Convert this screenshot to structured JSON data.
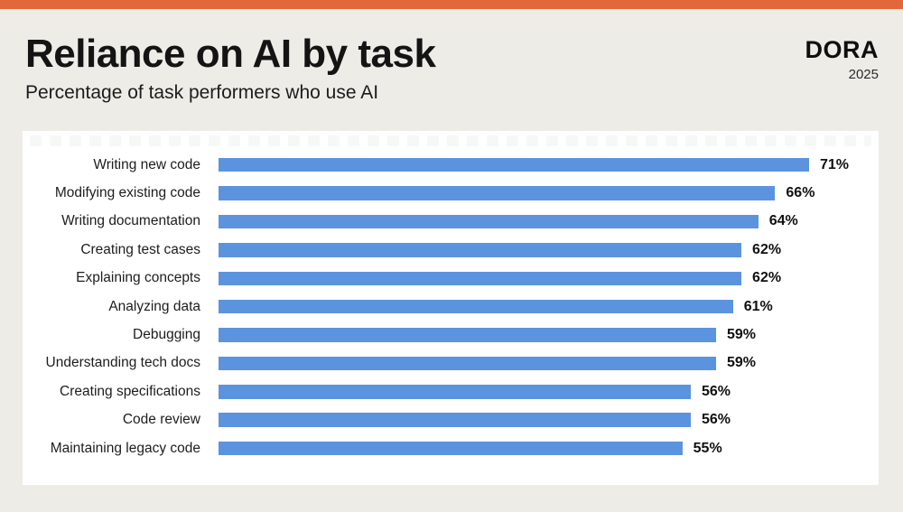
{
  "header": {
    "title": "Reliance on AI by task",
    "subtitle": "Percentage of task performers who use AI",
    "brand": "DORA",
    "year": "2025"
  },
  "colors": {
    "accent_orange": "#E2673A",
    "bar_blue": "#5C93DF",
    "background": "#EDECE7",
    "card": "#FFFFFF",
    "text_primary": "#1A1A1A"
  },
  "chart_data": {
    "type": "bar",
    "orientation": "horizontal",
    "title": "Reliance on AI by task",
    "subtitle": "Percentage of task performers who use AI",
    "categories": [
      "Writing new code",
      "Modifying existing code",
      "Writing documentation",
      "Creating test cases",
      "Explaining concepts",
      "Analyzing data",
      "Debugging",
      "Understanding tech docs",
      "Creating specifications",
      "Code review",
      "Maintaining legacy code"
    ],
    "values": [
      71,
      66,
      64,
      62,
      62,
      61,
      59,
      59,
      56,
      56,
      55
    ],
    "unit": "%",
    "value_labels": [
      "71%",
      "66%",
      "64%",
      "62%",
      "62%",
      "61%",
      "59%",
      "59%",
      "56%",
      "56%",
      "55%"
    ],
    "xlim": [
      0,
      77
    ],
    "grid": false,
    "legend": false,
    "value_labels_shown": true,
    "bar_color": "#5C93DF"
  }
}
